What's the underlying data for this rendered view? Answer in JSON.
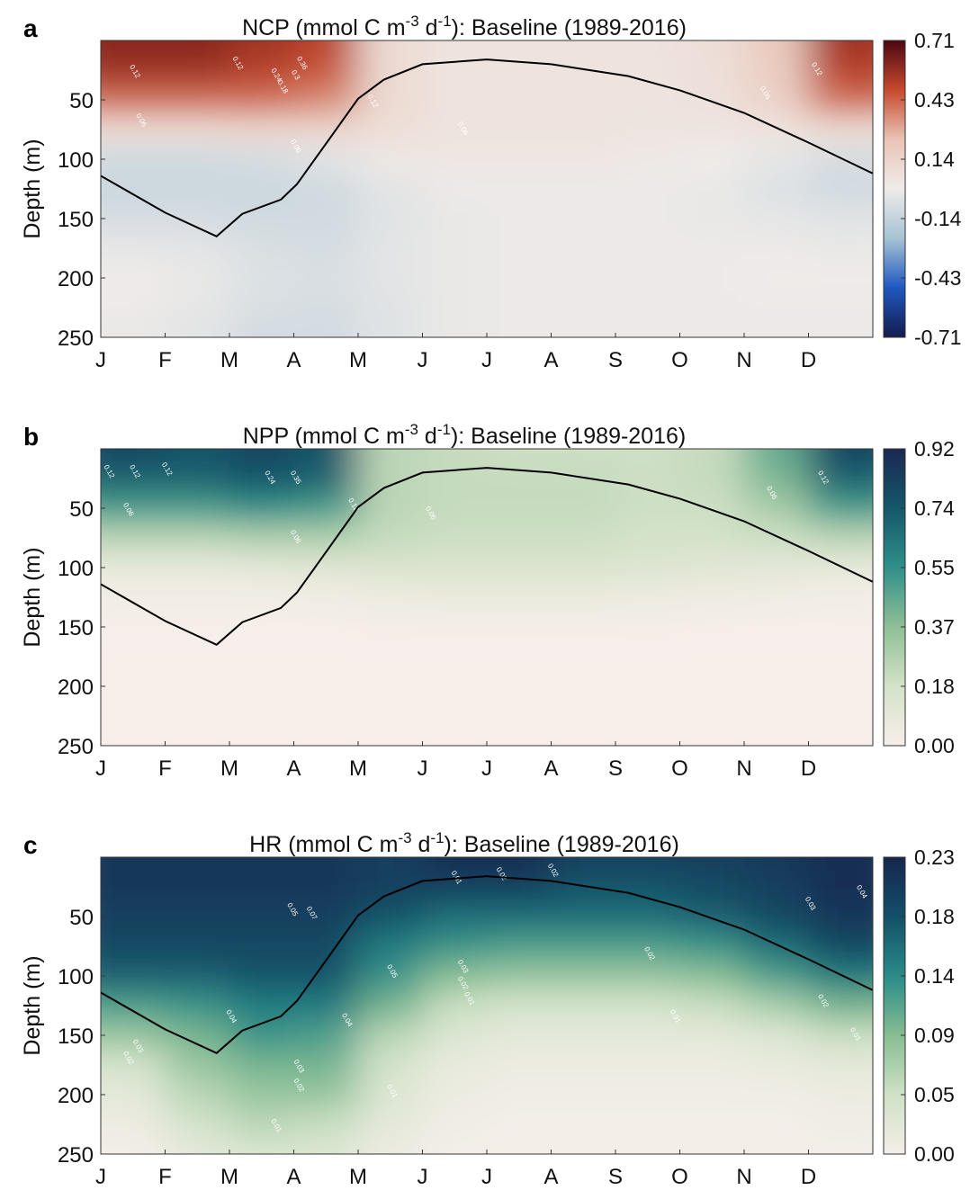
{
  "chart_data": [
    {
      "type": "heatmap",
      "panel_letter": "a",
      "title": {
        "prefix": "NCP (mmol C m",
        "sup1": "-3",
        "mid": " d",
        "sup2": "-1",
        "suffix": "): Baseline (1989-2016)"
      },
      "ylabel": "Depth (m)",
      "x_tick_labels": [
        "J",
        "F",
        "M",
        "A",
        "M",
        "J",
        "J",
        "A",
        "S",
        "O",
        "N",
        "D"
      ],
      "y_ticks": [
        50,
        100,
        150,
        200,
        250
      ],
      "ylim": [
        0,
        250
      ],
      "depths": [
        0,
        25,
        50,
        75,
        100,
        125,
        150,
        175,
        200,
        225,
        250
      ],
      "colorbar_ticks": [
        "0.71",
        "0.43",
        "0.14",
        "-0.14",
        "-0.43",
        "-0.71"
      ],
      "clim": [
        -0.71,
        0.71
      ],
      "colormap": [
        "#141b4d",
        "#1f58c0",
        "#a6c3d3",
        "#efebe9",
        "#e9c4b5",
        "#c64a2e",
        "#4d0712"
      ],
      "values": [
        [
          0.6,
          0.6,
          0.55,
          0.5,
          0.1,
          0.05,
          0.05,
          0.05,
          0.05,
          0.08,
          0.2,
          0.55
        ],
        [
          0.55,
          0.55,
          0.5,
          0.45,
          0.1,
          0.05,
          0.05,
          0.05,
          0.05,
          0.07,
          0.18,
          0.5
        ],
        [
          0.4,
          0.4,
          0.4,
          0.35,
          0.1,
          0.05,
          0.05,
          0.05,
          0.05,
          0.06,
          0.15,
          0.4
        ],
        [
          0.1,
          0.1,
          0.12,
          0.12,
          0.08,
          0.05,
          0.05,
          0.05,
          0.04,
          0.04,
          0.05,
          0.1
        ],
        [
          -0.1,
          -0.1,
          -0.08,
          -0.05,
          0.02,
          0.03,
          0.03,
          0.03,
          0.02,
          0.0,
          -0.03,
          -0.08
        ],
        [
          -0.12,
          -0.12,
          -0.12,
          -0.1,
          -0.04,
          -0.01,
          -0.01,
          -0.01,
          -0.01,
          -0.02,
          -0.06,
          -0.1
        ],
        [
          -0.08,
          -0.08,
          -0.1,
          -0.1,
          -0.05,
          -0.02,
          -0.01,
          -0.01,
          -0.01,
          -0.02,
          -0.03,
          -0.05
        ],
        [
          -0.03,
          -0.04,
          -0.07,
          -0.08,
          -0.04,
          -0.02,
          -0.01,
          -0.01,
          -0.01,
          -0.01,
          -0.01,
          -0.02
        ],
        [
          0,
          -0.02,
          -0.06,
          -0.07,
          -0.04,
          -0.02,
          -0.01,
          -0.01,
          -0.01,
          -0.01,
          0,
          0
        ],
        [
          -0.01,
          -0.03,
          -0.07,
          -0.08,
          -0.05,
          -0.02,
          -0.01,
          -0.01,
          -0.01,
          -0.01,
          -0.01,
          -0.01
        ],
        [
          -0.02,
          -0.04,
          -0.09,
          -0.09,
          -0.05,
          -0.02,
          -0.01,
          -0.01,
          -0.01,
          -0.01,
          -0.01,
          -0.01
        ]
      ],
      "contour_labels": [
        {
          "text": "0.12",
          "month": 0.5,
          "depth": 27
        },
        {
          "text": "0.12",
          "month": 2.1,
          "depth": 20
        },
        {
          "text": "0.24",
          "month": 2.7,
          "depth": 30
        },
        {
          "text": "0.18",
          "month": 2.8,
          "depth": 40
        },
        {
          "text": "0.3",
          "month": 3.0,
          "depth": 30
        },
        {
          "text": "0.36",
          "month": 3.1,
          "depth": 20
        },
        {
          "text": "0.06",
          "month": 0.6,
          "depth": 68
        },
        {
          "text": "0.06",
          "month": 3.0,
          "depth": 90
        },
        {
          "text": "0.12",
          "month": 4.2,
          "depth": 52
        },
        {
          "text": "0.06",
          "month": 5.6,
          "depth": 75
        },
        {
          "text": "0.06",
          "month": 10.3,
          "depth": 45
        },
        {
          "text": "0.12",
          "month": 11.1,
          "depth": 25
        }
      ]
    },
    {
      "type": "heatmap",
      "panel_letter": "b",
      "title": {
        "prefix": "NPP (mmol C m",
        "sup1": "-3",
        "mid": " d",
        "sup2": "-1",
        "suffix": "): Baseline (1989-2016)"
      },
      "ylabel": "Depth (m)",
      "x_tick_labels": [
        "J",
        "F",
        "M",
        "A",
        "M",
        "J",
        "J",
        "A",
        "S",
        "O",
        "N",
        "D"
      ],
      "y_ticks": [
        50,
        100,
        150,
        200,
        250
      ],
      "ylim": [
        0,
        250
      ],
      "depths": [
        0,
        25,
        50,
        75,
        100,
        125,
        150,
        175,
        200,
        225,
        250
      ],
      "colorbar_ticks": [
        "0.92",
        "0.74",
        "0.55",
        "0.37",
        "0.18",
        "0.00"
      ],
      "clim": [
        0,
        0.92
      ],
      "colormap": [
        "#f7eeea",
        "#d3e2c8",
        "#8fbf96",
        "#2f8f8a",
        "#15586b",
        "#1b2850"
      ],
      "values": [
        [
          0.8,
          0.75,
          0.8,
          0.75,
          0.25,
          0.22,
          0.2,
          0.2,
          0.2,
          0.22,
          0.45,
          0.8
        ],
        [
          0.7,
          0.7,
          0.75,
          0.7,
          0.25,
          0.22,
          0.22,
          0.22,
          0.2,
          0.22,
          0.4,
          0.7
        ],
        [
          0.5,
          0.5,
          0.55,
          0.5,
          0.25,
          0.22,
          0.22,
          0.22,
          0.2,
          0.2,
          0.3,
          0.5
        ],
        [
          0.25,
          0.25,
          0.28,
          0.28,
          0.22,
          0.2,
          0.2,
          0.2,
          0.18,
          0.18,
          0.2,
          0.25
        ],
        [
          0.08,
          0.08,
          0.1,
          0.12,
          0.15,
          0.15,
          0.15,
          0.15,
          0.14,
          0.12,
          0.1,
          0.08
        ],
        [
          0.02,
          0.02,
          0.02,
          0.03,
          0.05,
          0.06,
          0.06,
          0.06,
          0.05,
          0.04,
          0.03,
          0.02
        ],
        [
          0.005,
          0.005,
          0.005,
          0.005,
          0.01,
          0.01,
          0.01,
          0.01,
          0.01,
          0.005,
          0.005,
          0.005
        ],
        [
          0,
          0,
          0,
          0,
          0,
          0,
          0,
          0,
          0,
          0,
          0,
          0
        ],
        [
          0,
          0,
          0,
          0,
          0,
          0,
          0,
          0,
          0,
          0,
          0,
          0
        ],
        [
          0,
          0,
          0,
          0,
          0,
          0,
          0,
          0,
          0,
          0,
          0,
          0
        ],
        [
          0,
          0,
          0,
          0,
          0,
          0,
          0,
          0,
          0,
          0,
          0,
          0
        ]
      ],
      "contour_labels": [
        {
          "text": "0.12",
          "month": 0.1,
          "depth": 20
        },
        {
          "text": "0.12",
          "month": 0.5,
          "depth": 20
        },
        {
          "text": "0.12",
          "month": 1.0,
          "depth": 18
        },
        {
          "text": "0.06",
          "month": 0.4,
          "depth": 52
        },
        {
          "text": "0.24",
          "month": 2.6,
          "depth": 25
        },
        {
          "text": "0.35",
          "month": 3.0,
          "depth": 25
        },
        {
          "text": "0.06",
          "month": 3.0,
          "depth": 75
        },
        {
          "text": "0.12",
          "month": 3.9,
          "depth": 48
        },
        {
          "text": "0.06",
          "month": 5.1,
          "depth": 55
        },
        {
          "text": "0.06",
          "month": 10.4,
          "depth": 38
        },
        {
          "text": "0.12",
          "month": 11.2,
          "depth": 25
        }
      ]
    },
    {
      "type": "heatmap",
      "panel_letter": "c",
      "title": {
        "prefix": "HR (mmol C m",
        "sup1": "-3",
        "mid": " d",
        "sup2": "-1",
        "suffix": "): Baseline (1989-2016)"
      },
      "ylabel": "Depth (m)",
      "x_tick_labels": [
        "J",
        "F",
        "M",
        "A",
        "M",
        "J",
        "J",
        "A",
        "S",
        "O",
        "N",
        "D"
      ],
      "y_ticks": [
        50,
        100,
        150,
        200,
        250
      ],
      "ylim": [
        0,
        250
      ],
      "depths": [
        0,
        25,
        50,
        75,
        100,
        125,
        150,
        175,
        200,
        225,
        250
      ],
      "colorbar_ticks": [
        "0.23",
        "0.18",
        "0.14",
        "0.09",
        "0.05",
        "0.00"
      ],
      "clim": [
        0,
        0.23
      ],
      "colormap": [
        "#f4eee9",
        "#cfe1c6",
        "#86bd92",
        "#2a8b88",
        "#134f68",
        "#16264d"
      ],
      "values": [
        [
          0.21,
          0.21,
          0.21,
          0.21,
          0.2,
          0.22,
          0.22,
          0.2,
          0.2,
          0.2,
          0.21,
          0.22
        ],
        [
          0.21,
          0.21,
          0.21,
          0.21,
          0.2,
          0.2,
          0.2,
          0.18,
          0.18,
          0.19,
          0.2,
          0.22
        ],
        [
          0.2,
          0.2,
          0.2,
          0.2,
          0.18,
          0.16,
          0.16,
          0.16,
          0.16,
          0.17,
          0.19,
          0.21
        ],
        [
          0.19,
          0.19,
          0.19,
          0.19,
          0.15,
          0.13,
          0.12,
          0.12,
          0.12,
          0.13,
          0.16,
          0.19
        ],
        [
          0.17,
          0.17,
          0.18,
          0.18,
          0.13,
          0.09,
          0.08,
          0.08,
          0.08,
          0.09,
          0.12,
          0.15
        ],
        [
          0.12,
          0.13,
          0.15,
          0.15,
          0.1,
          0.05,
          0.04,
          0.04,
          0.04,
          0.05,
          0.07,
          0.1
        ],
        [
          0.08,
          0.1,
          0.13,
          0.12,
          0.06,
          0.03,
          0.02,
          0.02,
          0.02,
          0.02,
          0.03,
          0.05
        ],
        [
          0.04,
          0.08,
          0.1,
          0.1,
          0.04,
          0.015,
          0.01,
          0.01,
          0.01,
          0.01,
          0.015,
          0.02
        ],
        [
          0.02,
          0.06,
          0.08,
          0.08,
          0.03,
          0.01,
          0.005,
          0.005,
          0.005,
          0.005,
          0.005,
          0.01
        ],
        [
          0.01,
          0.04,
          0.06,
          0.05,
          0.02,
          0.005,
          0,
          0,
          0,
          0,
          0,
          0.005
        ],
        [
          0,
          0.02,
          0.03,
          0.03,
          0.01,
          0,
          0,
          0,
          0,
          0,
          0,
          0
        ]
      ],
      "contour_labels": [
        {
          "text": "0.05",
          "month": 2.95,
          "depth": 45
        },
        {
          "text": "0.07",
          "month": 3.25,
          "depth": 48
        },
        {
          "text": "0.01",
          "month": 5.5,
          "depth": 18
        },
        {
          "text": "0.02",
          "month": 6.2,
          "depth": 15
        },
        {
          "text": "0.02",
          "month": 7.0,
          "depth": 12
        },
        {
          "text": "0.05",
          "month": 4.5,
          "depth": 97
        },
        {
          "text": "0.03",
          "month": 5.6,
          "depth": 93
        },
        {
          "text": "0.02",
          "month": 5.6,
          "depth": 107
        },
        {
          "text": "0.01",
          "month": 5.7,
          "depth": 120
        },
        {
          "text": "0.02",
          "month": 8.5,
          "depth": 82
        },
        {
          "text": "0.01",
          "month": 8.9,
          "depth": 135
        },
        {
          "text": "0.04",
          "month": 2.0,
          "depth": 135
        },
        {
          "text": "0.04",
          "month": 3.8,
          "depth": 138
        },
        {
          "text": "0.03",
          "month": 0.55,
          "depth": 160
        },
        {
          "text": "0.02",
          "month": 0.4,
          "depth": 170
        },
        {
          "text": "0.03",
          "month": 3.05,
          "depth": 177
        },
        {
          "text": "0.02",
          "month": 3.05,
          "depth": 193
        },
        {
          "text": "0.01",
          "month": 2.7,
          "depth": 227
        },
        {
          "text": "0.01",
          "month": 4.5,
          "depth": 198
        },
        {
          "text": "0.03",
          "month": 11.0,
          "depth": 40
        },
        {
          "text": "0.04",
          "month": 11.8,
          "depth": 30
        },
        {
          "text": "0.02",
          "month": 11.2,
          "depth": 122
        },
        {
          "text": "0.01",
          "month": 11.7,
          "depth": 150
        }
      ]
    }
  ],
  "mixed_layer_depth": {
    "month": [
      0,
      1,
      1.8,
      2.2,
      2.8,
      3.05,
      3.5,
      4.0,
      4.4,
      5.0,
      6.0,
      7.0,
      8.2,
      9.0,
      10.0,
      11.0,
      12.0
    ],
    "depth": [
      114,
      145,
      165,
      146,
      134,
      121,
      87,
      49,
      33,
      20,
      16,
      20,
      30,
      42,
      61,
      86,
      112
    ]
  }
}
